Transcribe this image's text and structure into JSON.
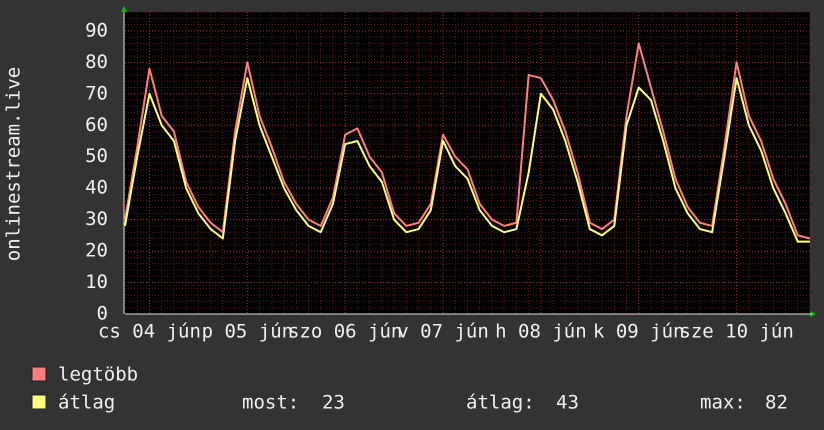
{
  "chart_data": {
    "type": "line",
    "y_label": "onlinestream.live",
    "categories": [
      null,
      null,
      "cs 04 jún",
      null,
      null,
      null,
      null,
      null,
      null,
      null,
      "p 05 jún",
      null,
      null,
      null,
      null,
      null,
      null,
      null,
      "szo 06 jún",
      null,
      null,
      null,
      null,
      null,
      null,
      null,
      "v 07 jún",
      null,
      null,
      null,
      null,
      null,
      null,
      null,
      "h 08 jún",
      null,
      null,
      null,
      null,
      null,
      null,
      null,
      "k 09 jún",
      null,
      null,
      null,
      null,
      null,
      null,
      null,
      "sze 10 jún",
      null,
      null,
      null,
      null,
      null,
      null
    ],
    "series": [
      {
        "name": "legtöbb",
        "color": "#ff7f7f",
        "values": [
          30,
          53,
          78,
          63,
          58,
          42,
          34,
          29,
          26,
          58,
          80,
          63,
          53,
          42,
          35,
          30,
          28,
          37,
          57,
          59,
          50,
          45,
          32,
          28,
          29,
          35,
          57,
          50,
          46,
          35,
          30,
          28,
          29,
          76,
          75,
          68,
          58,
          45,
          29,
          27,
          30,
          63,
          86,
          72,
          58,
          43,
          34,
          29,
          28,
          53,
          80,
          63,
          55,
          43,
          35,
          25,
          24
        ]
      },
      {
        "name": "átlag",
        "color": "#ffff80",
        "values": [
          28,
          50,
          70,
          60,
          55,
          40,
          32,
          27,
          24,
          55,
          75,
          60,
          50,
          40,
          33,
          28,
          26,
          35,
          54,
          55,
          47,
          42,
          30,
          26,
          27,
          33,
          55,
          47,
          43,
          33,
          28,
          26,
          27,
          45,
          70,
          65,
          55,
          42,
          27,
          25,
          28,
          60,
          72,
          68,
          55,
          40,
          32,
          27,
          26,
          50,
          75,
          60,
          52,
          40,
          32,
          23,
          23
        ]
      }
    ],
    "ylim": [
      0,
      96
    ],
    "yticks": [
      0,
      10,
      20,
      30,
      40,
      50,
      60,
      70,
      80,
      90
    ],
    "grid": true,
    "stats": [
      {
        "label": "most:",
        "value": 23
      },
      {
        "label": "átlag:",
        "value": 43
      },
      {
        "label": "max:",
        "value": 82
      }
    ]
  }
}
